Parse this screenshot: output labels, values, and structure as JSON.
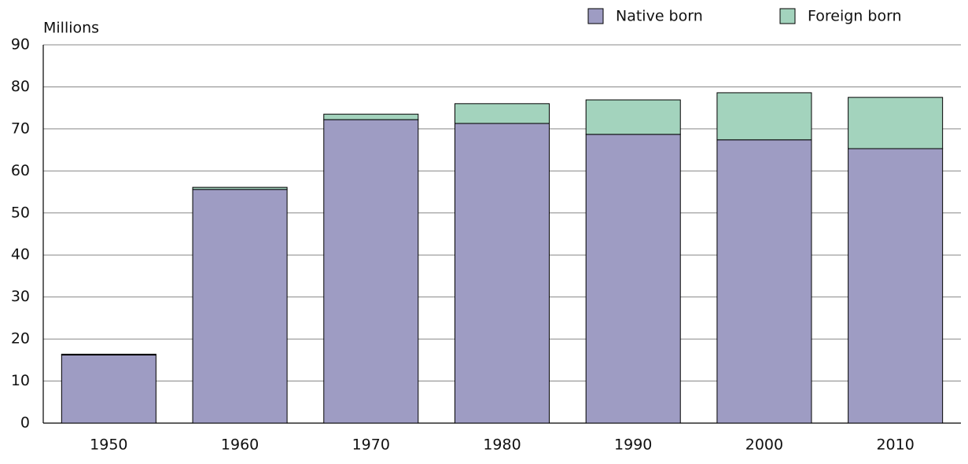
{
  "chart_data": {
    "type": "stacked-bar",
    "y_label": "Millions",
    "categories": [
      "1950",
      "1960",
      "1970",
      "1980",
      "1990",
      "2000",
      "2010"
    ],
    "series": [
      {
        "name": "Native born",
        "color": "#9e9cc3",
        "values": [
          16.2,
          55.6,
          72.2,
          71.3,
          68.7,
          67.4,
          65.3
        ]
      },
      {
        "name": "Foreign born",
        "color": "#a3d3bd",
        "values": [
          0.2,
          0.5,
          1.3,
          4.7,
          8.2,
          11.2,
          12.2
        ]
      }
    ],
    "ylim": [
      0,
      90
    ],
    "yticks": [
      0,
      10,
      20,
      30,
      40,
      50,
      60,
      70,
      80,
      90
    ],
    "grid": true
  }
}
